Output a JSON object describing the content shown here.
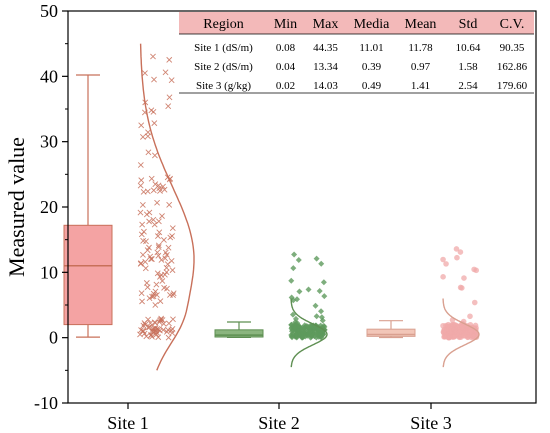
{
  "chart_data": {
    "type": "box",
    "ylabel": "Measured value",
    "ylim": [
      -10,
      50
    ],
    "yticks": [
      -10,
      0,
      10,
      20,
      30,
      40,
      50
    ],
    "categories": [
      "Site 1",
      "Site 2",
      "Site 3"
    ],
    "colors": {
      "site1_box": "#f4a3a3",
      "site1_edge": "#c8705a",
      "site1_points": "#c8705a",
      "site2_box": "#8bb57f",
      "site2_edge": "#5e8f52",
      "site2_points": "#5e9a5c",
      "site3_box": "#f2c6b8",
      "site3_edge": "#d9a090",
      "site3_points": "#f0aaaa",
      "table_header": "#f3b9b9"
    },
    "series": [
      {
        "category": "Site 1",
        "box": {
          "whisker_low": 0.08,
          "q1": 2,
          "median": 11.01,
          "q3": 17.2,
          "whisker_high": 40.2
        },
        "marker": "x"
      },
      {
        "category": "Site 2",
        "box": {
          "whisker_low": 0.04,
          "q1": 0.1,
          "median": 0.39,
          "q3": 1.2,
          "whisker_high": 2.4
        },
        "marker": "diamond"
      },
      {
        "category": "Site 3",
        "box": {
          "whisker_low": 0.02,
          "q1": 0.2,
          "median": 0.49,
          "q3": 1.3,
          "whisker_high": 2.6
        },
        "marker": "circle"
      }
    ],
    "table": {
      "headers": [
        "Region",
        "Min",
        "Max",
        "Media",
        "Mean",
        "Std",
        "C.V."
      ],
      "rows": [
        [
          "Site 1 (dS/m)",
          "0.08",
          "44.35",
          "11.01",
          "11.78",
          "10.64",
          "90.35"
        ],
        [
          "Site 2 (dS/m)",
          "0.04",
          "13.34",
          "0.39",
          "0.97",
          "1.58",
          "162.86"
        ],
        [
          "Site 3 (g/kg)",
          "0.02",
          "14.03",
          "0.49",
          "1.41",
          "2.54",
          "179.60"
        ]
      ]
    }
  }
}
